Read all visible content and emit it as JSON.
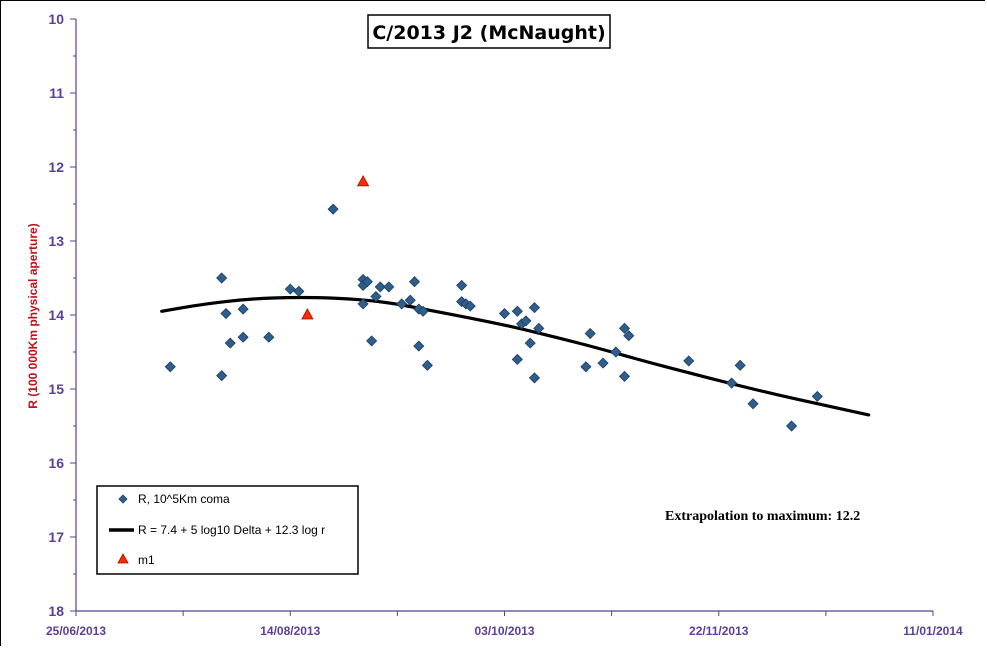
{
  "chart_data": {
    "type": "scatter",
    "title": "C/2013 J2 (McNaught)",
    "ylabel": "R (100 000Km physical aperture)",
    "xlabel": "",
    "ylim": [
      10,
      18
    ],
    "y_inverted": true,
    "yticks": [
      "10",
      "11",
      "12",
      "13",
      "14",
      "15",
      "16",
      "17",
      "18"
    ],
    "xlim": [
      "2013-06-25",
      "2014-01-11"
    ],
    "xticks": [
      "25/06/2013",
      "14/08/2013",
      "03/10/2013",
      "22/11/2013",
      "11/01/2014"
    ],
    "grid": false,
    "legend_position": "bottom-left",
    "series": [
      {
        "name": "R, 10^5Km coma",
        "marker": "diamond",
        "color": "#2f5d8c",
        "points": [
          [
            "2013-07-17",
            14.7
          ],
          [
            "2013-07-29",
            13.5
          ],
          [
            "2013-07-29",
            14.82
          ],
          [
            "2013-07-30",
            13.98
          ],
          [
            "2013-07-31",
            14.38
          ],
          [
            "2013-08-03",
            13.92
          ],
          [
            "2013-08-03",
            14.3
          ],
          [
            "2013-08-09",
            14.3
          ],
          [
            "2013-08-14",
            13.65
          ],
          [
            "2013-08-16",
            13.68
          ],
          [
            "2013-08-24",
            12.57
          ],
          [
            "2013-08-31",
            13.52
          ],
          [
            "2013-08-31",
            13.6
          ],
          [
            "2013-08-31",
            13.85
          ],
          [
            "2013-09-01",
            13.55
          ],
          [
            "2013-09-02",
            14.35
          ],
          [
            "2013-09-03",
            13.75
          ],
          [
            "2013-09-04",
            13.62
          ],
          [
            "2013-09-06",
            13.62
          ],
          [
            "2013-09-09",
            13.85
          ],
          [
            "2013-09-11",
            13.8
          ],
          [
            "2013-09-12",
            13.55
          ],
          [
            "2013-09-13",
            14.42
          ],
          [
            "2013-09-13",
            13.92
          ],
          [
            "2013-09-14",
            13.95
          ],
          [
            "2013-09-15",
            14.68
          ],
          [
            "2013-09-23",
            13.6
          ],
          [
            "2013-09-23",
            13.82
          ],
          [
            "2013-09-24",
            13.85
          ],
          [
            "2013-09-25",
            13.88
          ],
          [
            "2013-10-03",
            13.98
          ],
          [
            "2013-10-06",
            13.95
          ],
          [
            "2013-10-06",
            14.6
          ],
          [
            "2013-10-07",
            14.12
          ],
          [
            "2013-10-08",
            14.08
          ],
          [
            "2013-10-09",
            14.38
          ],
          [
            "2013-10-10",
            13.9
          ],
          [
            "2013-10-10",
            14.85
          ],
          [
            "2013-10-11",
            14.18
          ],
          [
            "2013-10-22",
            14.7
          ],
          [
            "2013-10-23",
            14.25
          ],
          [
            "2013-10-26",
            14.65
          ],
          [
            "2013-10-29",
            14.5
          ],
          [
            "2013-10-31",
            14.18
          ],
          [
            "2013-10-31",
            14.83
          ],
          [
            "2013-11-01",
            14.28
          ],
          [
            "2013-11-15",
            14.62
          ],
          [
            "2013-11-25",
            14.92
          ],
          [
            "2013-11-27",
            14.68
          ],
          [
            "2013-11-30",
            15.2
          ],
          [
            "2013-12-09",
            15.5
          ],
          [
            "2013-12-15",
            15.1
          ]
        ]
      },
      {
        "name": "R = 7.4 + 5 log10 Delta + 12.3  log r",
        "type": "line",
        "color": "#000000",
        "points": [
          [
            "2013-07-15",
            13.95
          ],
          [
            "2013-07-25",
            13.85
          ],
          [
            "2013-08-05",
            13.78
          ],
          [
            "2013-08-15",
            13.76
          ],
          [
            "2013-08-25",
            13.77
          ],
          [
            "2013-09-05",
            13.82
          ],
          [
            "2013-09-15",
            13.93
          ],
          [
            "2013-09-25",
            14.04
          ],
          [
            "2013-10-05",
            14.16
          ],
          [
            "2013-10-15",
            14.3
          ],
          [
            "2013-10-25",
            14.45
          ],
          [
            "2013-11-05",
            14.63
          ],
          [
            "2013-11-15",
            14.78
          ],
          [
            "2013-11-25",
            14.93
          ],
          [
            "2013-12-05",
            15.07
          ],
          [
            "2013-12-15",
            15.2
          ],
          [
            "2013-12-27",
            15.35
          ]
        ]
      },
      {
        "name": "m1",
        "marker": "triangle",
        "color": "#ff2a00",
        "points": [
          [
            "2013-08-18",
            14.0
          ],
          [
            "2013-08-31",
            12.2
          ]
        ]
      }
    ],
    "annotation": "Extrapolation  to maximum:  12.2"
  }
}
